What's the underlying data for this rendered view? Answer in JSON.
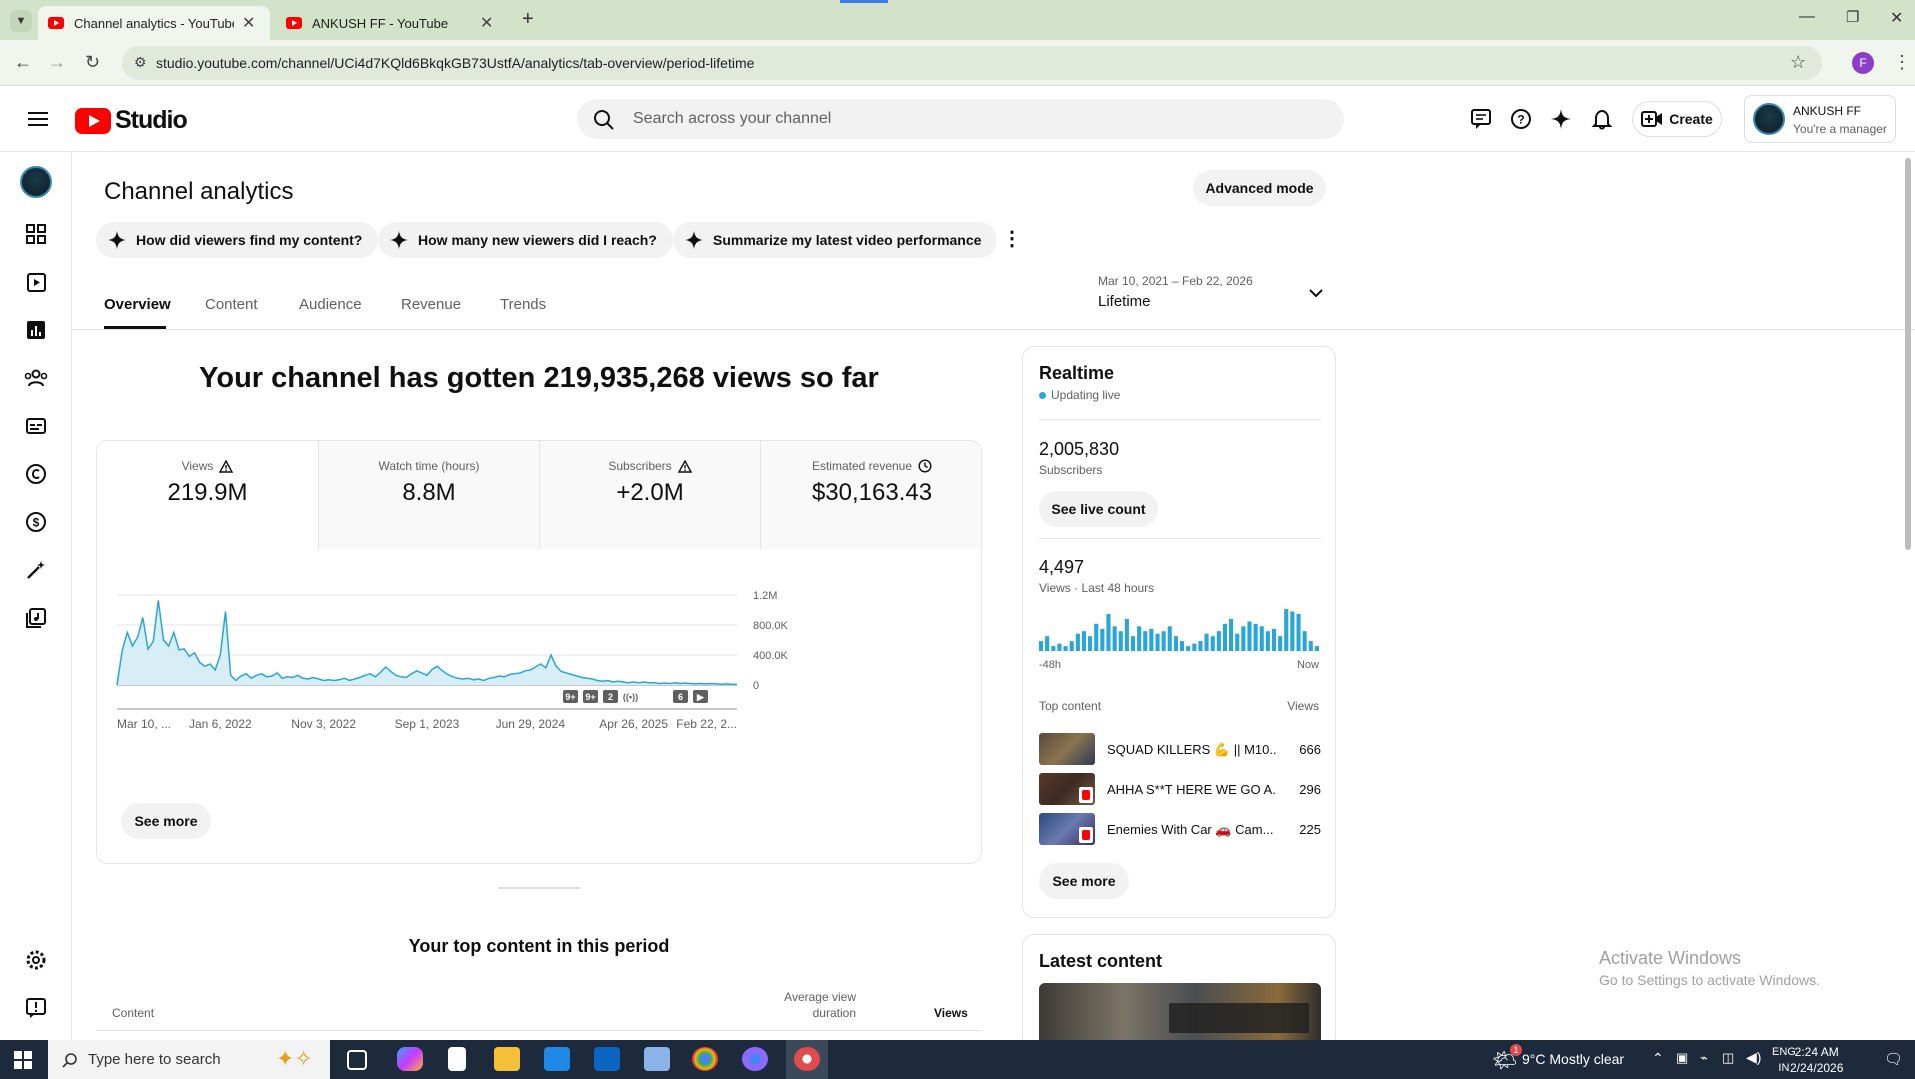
{
  "browser": {
    "tabs": [
      {
        "title": "Channel analytics - YouTube Studio",
        "active": true
      },
      {
        "title": "ANKUSH FF - YouTube",
        "active": false
      }
    ],
    "url": "studio.youtube.com/channel/UCi4d7KQld6BkqkGB73UstfA/analytics/tab-overview/period-lifetime",
    "profile_initial": "F"
  },
  "header": {
    "logo_text": "Studio",
    "search_placeholder": "Search across your channel",
    "create_label": "Create",
    "account_name": "ANKUSH FF",
    "account_role": "You're a manager"
  },
  "page": {
    "title": "Channel analytics",
    "advanced_mode_label": "Advanced mode",
    "chips": [
      "How did viewers find my content?",
      "How many new viewers did I reach?",
      "Summarize my latest video performance"
    ],
    "tabs": [
      "Overview",
      "Content",
      "Audience",
      "Revenue",
      "Trends"
    ],
    "active_tab": "Overview",
    "period": {
      "range": "Mar 10, 2021 – Feb 22, 2026",
      "label": "Lifetime"
    }
  },
  "overview": {
    "headline": "Your channel has gotten 219,935,268 views so far",
    "metrics": [
      {
        "label": "Views",
        "value": "219.9M",
        "icon": "warning-icon"
      },
      {
        "label": "Watch time (hours)",
        "value": "8.8M",
        "icon": ""
      },
      {
        "label": "Subscribers",
        "value": "+2.0M",
        "icon": "warning-icon"
      },
      {
        "label": "Estimated revenue",
        "value": "$30,163.43",
        "icon": "clock-icon"
      }
    ],
    "see_more_label": "See more",
    "markers": [
      "9+",
      "9+",
      "2",
      "((•))",
      "6",
      "▶"
    ]
  },
  "chart_data": [
    {
      "type": "area",
      "title": "",
      "xlabel": "",
      "ylabel": "",
      "x_tick_labels": [
        "Mar 10, ...",
        "Jan 6, 2022",
        "Nov 3, 2022",
        "Sep 1, 2023",
        "Jun 29, 2024",
        "Apr 26, 2025",
        "Feb 22, 2..."
      ],
      "y_tick_labels": [
        "0",
        "400.0K",
        "800.0K",
        "1.2M"
      ],
      "ylim": [
        0,
        1200000
      ],
      "series": [
        {
          "values": [
            0,
            460000,
            700000,
            520000,
            640000,
            900000,
            480000,
            580000,
            1130000,
            600000,
            520000,
            700000,
            470000,
            480000,
            380000,
            430000,
            300000,
            250000,
            280000,
            200000,
            400000,
            980000,
            130000,
            60000,
            120000,
            150000,
            90000,
            130000,
            150000,
            110000,
            120000,
            160000,
            90000,
            110000,
            100000,
            130000,
            90000,
            80000,
            100000,
            80000,
            60000,
            70000,
            60000,
            70000,
            90000,
            60000,
            80000,
            100000,
            130000,
            150000,
            110000,
            170000,
            240000,
            180000,
            130000,
            110000,
            100000,
            150000,
            190000,
            160000,
            130000,
            210000,
            250000,
            190000,
            140000,
            110000,
            90000,
            80000,
            90000,
            70000,
            80000,
            60000,
            90000,
            100000,
            120000,
            110000,
            140000,
            150000,
            160000,
            190000,
            200000,
            240000,
            280000,
            230000,
            400000,
            250000,
            180000,
            160000,
            140000,
            120000,
            100000,
            90000,
            80000,
            60000,
            50000,
            60000,
            40000,
            50000,
            40000,
            30000,
            40000,
            30000,
            40000,
            30000,
            30000,
            20000,
            25000,
            20000,
            30000,
            20000,
            25000,
            20000,
            15000,
            20000,
            15000,
            20000,
            15000,
            10000,
            15000,
            10000,
            8000
          ]
        }
      ]
    },
    {
      "type": "bar",
      "title": "Views · Last 48 hours",
      "x_tick_labels": [
        "-48h",
        "Now"
      ],
      "values": [
        40,
        60,
        20,
        30,
        20,
        40,
        70,
        80,
        60,
        110,
        90,
        150,
        100,
        80,
        130,
        60,
        100,
        80,
        90,
        70,
        80,
        100,
        60,
        40,
        20,
        30,
        40,
        70,
        60,
        80,
        110,
        130,
        70,
        100,
        120,
        110,
        100,
        80,
        90,
        60,
        170,
        160,
        150,
        80,
        40,
        20
      ]
    }
  ],
  "realtime": {
    "title": "Realtime",
    "status": "Updating live",
    "subscribers_value": "2,005,830",
    "subscribers_label": "Subscribers",
    "see_live_count_label": "See live count",
    "views_value": "4,497",
    "views_label": "Views · Last 48 hours",
    "axis_start": "-48h",
    "axis_end": "Now",
    "top_content_label": "Top content",
    "views_col_label": "Views",
    "top_content": [
      {
        "title": "SQUAD KILLERS 💪 || M10...",
        "views": "666"
      },
      {
        "title": "AHHA S**T HERE WE GO A...",
        "views": "296"
      },
      {
        "title": "Enemies With Car 🚗 Cam...",
        "views": "225"
      }
    ],
    "see_more_label": "See more"
  },
  "latest": {
    "title": "Latest content"
  },
  "top_content_section": {
    "title": "Your top content in this period",
    "col_content": "Content",
    "col_avd_line1": "Average view",
    "col_avd_line2": "duration",
    "col_views": "Views"
  },
  "watermark": {
    "line1": "Activate Windows",
    "line2": "Go to Settings to activate Windows."
  },
  "taskbar": {
    "search_placeholder": "Type here to search",
    "weather": "9°C  Mostly clear",
    "lang_line1": "ENG",
    "lang_line2": "IN",
    "time": "2:24 AM",
    "date": "2/24/2026",
    "notif_count": "1"
  }
}
